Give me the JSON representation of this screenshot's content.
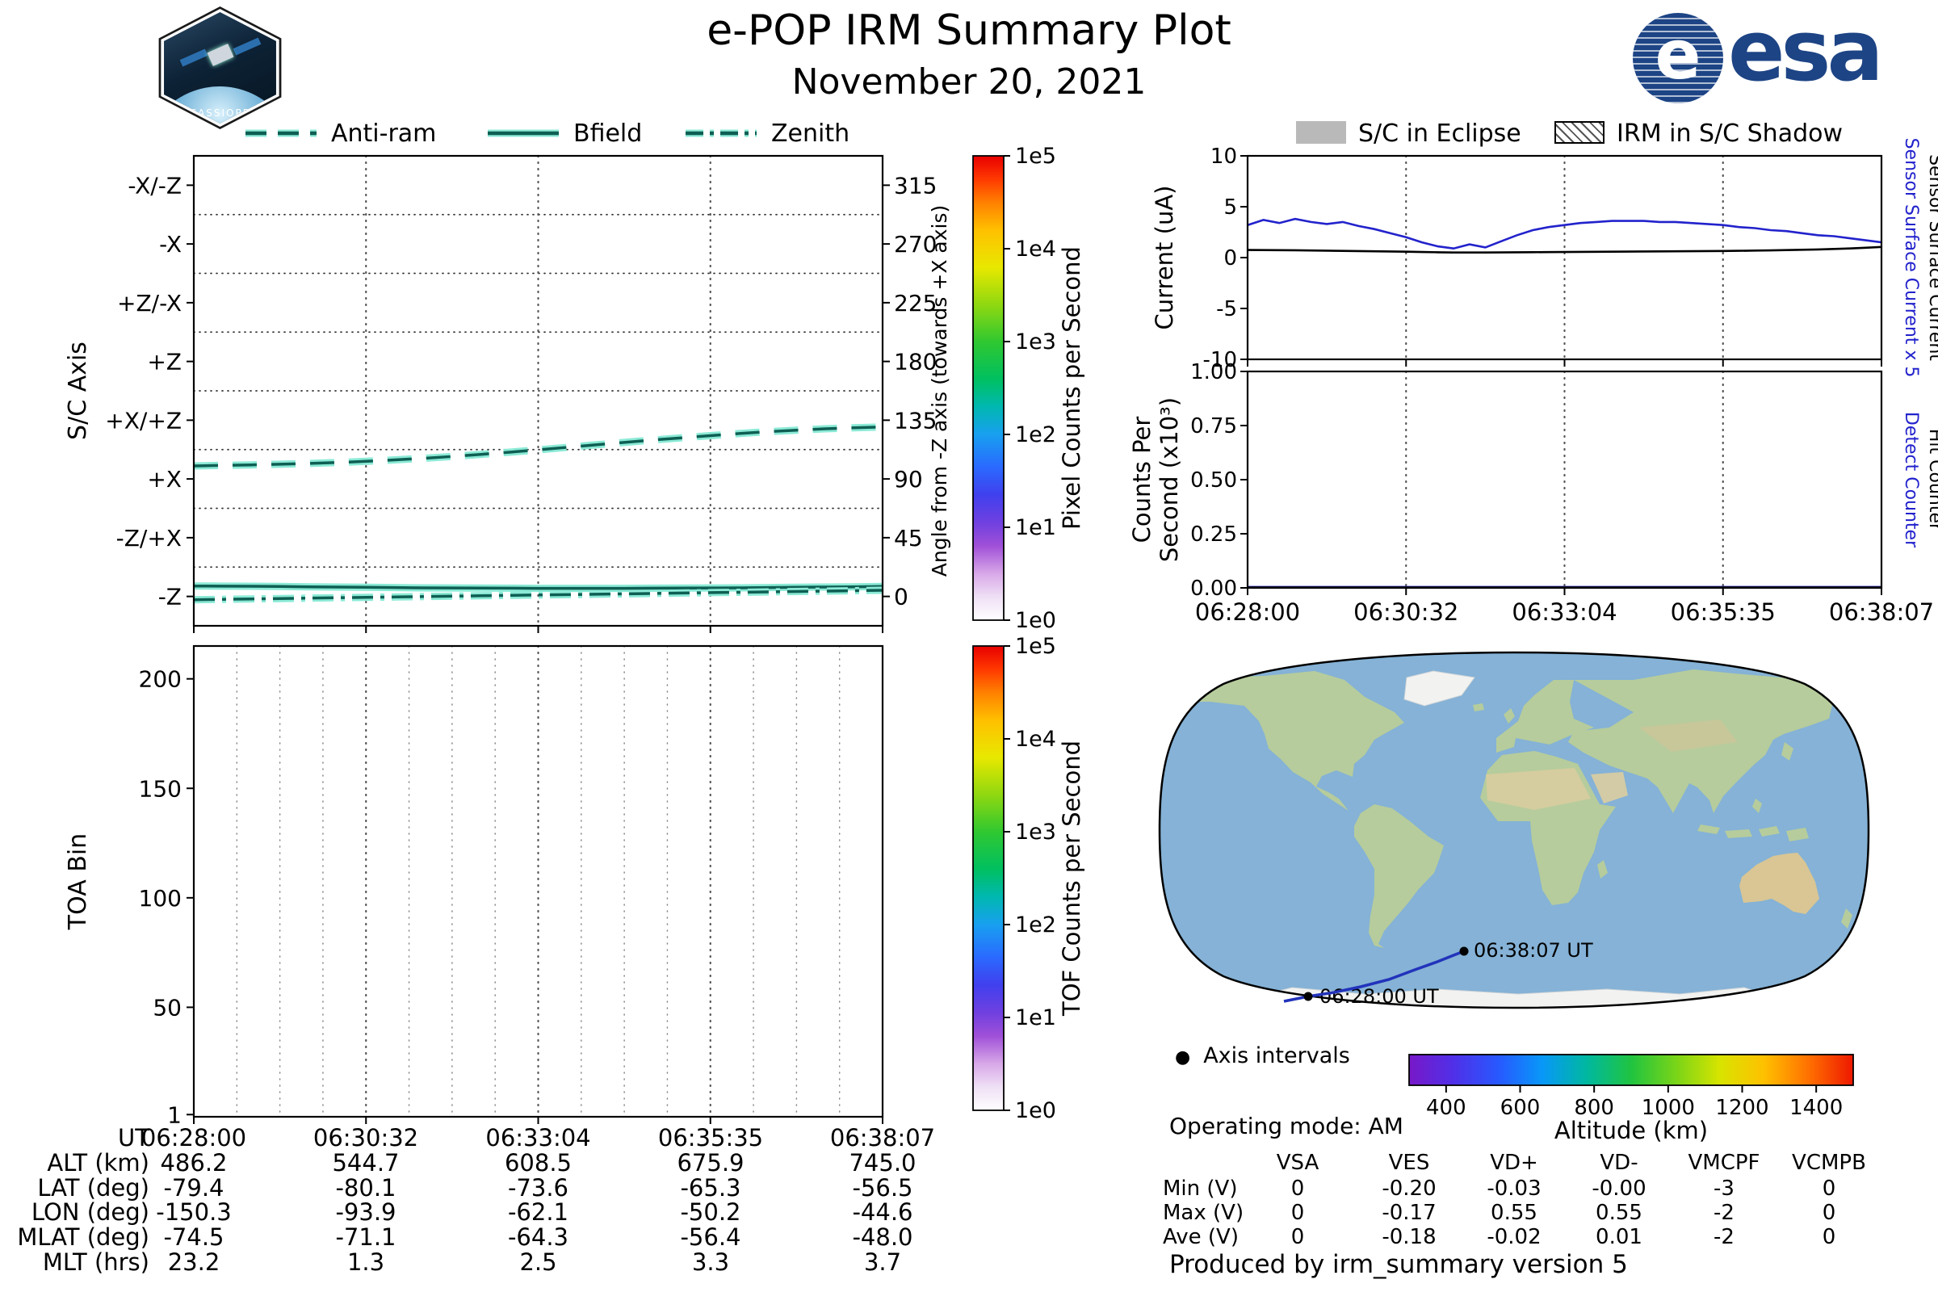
{
  "header": {
    "title": "e-POP IRM Summary Plot",
    "date": "November 20, 2021",
    "cassiope_label": "CASSIOPE",
    "esa_label": "esa"
  },
  "legend_sc_axis": {
    "items": [
      {
        "label": "Anti-ram",
        "style": "dashed"
      },
      {
        "label": "Bfield",
        "style": "solid"
      },
      {
        "label": "Zenith",
        "style": "dashdot"
      }
    ]
  },
  "legend_eclipse": {
    "items": [
      {
        "label": "S/C in Eclipse",
        "swatch": "gray"
      },
      {
        "label": "IRM in S/C Shadow",
        "swatch": "hatched"
      }
    ]
  },
  "chart_data": [
    {
      "id": "sc_axis",
      "type": "line",
      "y_left_label": "S/C Axis",
      "y_right_label": "Angle from -Z axis (towards +X axis)",
      "categories": [
        {
          "label": "-Z",
          "angle": 0
        },
        {
          "label": "-Z/+X",
          "angle": 45
        },
        {
          "label": "+X",
          "angle": 90
        },
        {
          "label": "+X/+Z",
          "angle": 135
        },
        {
          "label": "+Z",
          "angle": 180
        },
        {
          "label": "+Z/-X",
          "angle": 225
        },
        {
          "label": "-X",
          "angle": 270
        },
        {
          "label": "-X/-Z",
          "angle": 315
        }
      ],
      "right_ticks": [
        0,
        45,
        90,
        135,
        180,
        225,
        270,
        315
      ],
      "ylim": [
        -22.5,
        337.5
      ],
      "x_ticks": [
        "06:28:00",
        "06:30:32",
        "06:33:04",
        "06:35:35",
        "06:38:07"
      ],
      "series": [
        {
          "name": "Anti-ram",
          "style": "dashed",
          "values": [
            100,
            100.4,
            100.8,
            101.3,
            101.9,
            102.6,
            103.5,
            104.6,
            105.8,
            107.2,
            108.8,
            110.5,
            112.3,
            114.2,
            116.1,
            118,
            119.8,
            121.5,
            123.2,
            124.8,
            126.2,
            127.4,
            128.4,
            129.2,
            129.8
          ]
        },
        {
          "name": "Bfield",
          "style": "solid",
          "values": [
            8,
            7.9,
            7.8,
            7.6,
            7.4,
            7.2,
            7,
            6.8,
            6.6,
            6.5,
            6.4,
            6.3,
            6.2,
            6.2,
            6.2,
            6.2,
            6.3,
            6.4,
            6.5,
            6.6,
            6.8,
            7,
            7.2,
            7.4,
            7.6
          ]
        },
        {
          "name": "Zenith",
          "style": "dashdot",
          "values": [
            -2.5,
            -2.2,
            -1.9,
            -1.6,
            -1.3,
            -1,
            -0.7,
            -0.4,
            -0.1,
            0.2,
            0.5,
            0.8,
            1.1,
            1.4,
            1.7,
            2,
            2.3,
            2.6,
            2.9,
            3.2,
            3.5,
            3.8,
            4.1,
            4.4,
            4.7
          ]
        }
      ]
    },
    {
      "id": "current",
      "type": "line",
      "ylabel": "Current (uA)",
      "ylim": [
        -10,
        10
      ],
      "yticks": [
        -10,
        -5,
        0,
        5,
        10
      ],
      "right_labels": [
        {
          "text": "Sensor Surface Current x 5",
          "color": "#2222cc"
        },
        {
          "text": "Sensor Surface Current",
          "color": "#000000"
        }
      ],
      "series": [
        {
          "name": "Sensor Surface Current x 5",
          "color": "#2222cc",
          "values": [
            3.2,
            3.7,
            3.4,
            3.8,
            3.5,
            3.3,
            3.5,
            3.1,
            2.8,
            2.4,
            2.0,
            1.5,
            1.1,
            0.9,
            1.3,
            1.0,
            1.6,
            2.2,
            2.7,
            3.0,
            3.2,
            3.4,
            3.5,
            3.6,
            3.6,
            3.6,
            3.5,
            3.5,
            3.4,
            3.3,
            3.2,
            3.0,
            2.9,
            2.7,
            2.6,
            2.4,
            2.2,
            2.1,
            1.9,
            1.7,
            1.5
          ]
        },
        {
          "name": "Sensor Surface Current",
          "color": "#000000",
          "values": [
            0.75,
            0.74,
            0.73,
            0.72,
            0.7,
            0.68,
            0.66,
            0.64,
            0.62,
            0.6,
            0.58,
            0.55,
            0.52,
            0.5,
            0.5,
            0.5,
            0.51,
            0.52,
            0.53,
            0.54,
            0.55,
            0.56,
            0.57,
            0.58,
            0.59,
            0.6,
            0.61,
            0.62,
            0.63,
            0.64,
            0.65,
            0.67,
            0.69,
            0.71,
            0.74,
            0.77,
            0.8,
            0.85,
            0.9,
            0.97,
            1.05
          ]
        }
      ]
    },
    {
      "id": "counts",
      "type": "line",
      "ylabel_line1": "Counts Per",
      "ylabel_line2": "Second (x10³)",
      "ylim": [
        0,
        1
      ],
      "yticks": [
        "0.00",
        "0.25",
        "0.50",
        "0.75",
        "1.00"
      ],
      "x_ticks": [
        "06:28:00",
        "06:30:32",
        "06:33:04",
        "06:35:35",
        "06:38:07"
      ],
      "right_labels": [
        {
          "text": "Detect Counter",
          "color": "#2222cc"
        },
        {
          "text": "Hit Counter",
          "color": "#000000"
        }
      ],
      "series": [
        {
          "name": "Detect Counter",
          "color": "#2222cc",
          "values": [
            0.004,
            0.004,
            0.004,
            0.004,
            0.004,
            0.004,
            0.004,
            0.004,
            0.004,
            0.004,
            0.004
          ]
        },
        {
          "name": "Hit Counter",
          "color": "#000000",
          "values": [
            0.002,
            0.002,
            0.002,
            0.002,
            0.002,
            0.002,
            0.002,
            0.002,
            0.002,
            0.002,
            0.002
          ]
        }
      ]
    },
    {
      "id": "toa",
      "type": "heatmap",
      "ylabel": "TOA Bin",
      "ylim": [
        0,
        215
      ],
      "yticks": [
        1,
        50,
        100,
        150,
        200
      ],
      "x_ticks": [
        "06:28:00",
        "06:30:32",
        "06:33:04",
        "06:35:35",
        "06:38:07"
      ],
      "series": []
    }
  ],
  "colorbars": [
    {
      "id": "pixel",
      "label": "Pixel Counts per Second",
      "ticks": [
        "1e0",
        "1e1",
        "1e2",
        "1e3",
        "1e4",
        "1e5"
      ]
    },
    {
      "id": "tof",
      "label": "TOF Counts per Second",
      "ticks": [
        "1e0",
        "1e1",
        "1e2",
        "1e3",
        "1e4",
        "1e5"
      ]
    }
  ],
  "ephemeris_table": {
    "rows": [
      {
        "label": "UT",
        "values": [
          "06:28:00",
          "06:30:32",
          "06:33:04",
          "06:35:35",
          "06:38:07"
        ]
      },
      {
        "label": "ALT (km)",
        "values": [
          "486.2",
          "544.7",
          "608.5",
          "675.9",
          "745.0"
        ]
      },
      {
        "label": "LAT (deg)",
        "values": [
          "-79.4",
          "-80.1",
          "-73.6",
          "-65.3",
          "-56.5"
        ]
      },
      {
        "label": "LON (deg)",
        "values": [
          "-150.3",
          "-93.9",
          "-62.1",
          "-50.2",
          "-44.6"
        ]
      },
      {
        "label": "MLAT (deg)",
        "values": [
          "-74.5",
          "-71.1",
          "-64.3",
          "-56.4",
          "-48.0"
        ]
      },
      {
        "label": "MLT (hrs)",
        "values": [
          "23.2",
          "1.3",
          "2.5",
          "3.3",
          "3.7"
        ]
      }
    ]
  },
  "map": {
    "start_label": "06:28:00 UT",
    "end_label": "06:38:07 UT",
    "axis_intervals_label": "Axis intervals",
    "operating_mode_label": "Operating mode: AM",
    "altitude_colorbar": {
      "label": "Altitude (km)",
      "ticks": [
        400,
        600,
        800,
        1000,
        1200,
        1400
      ],
      "range": [
        300,
        1500
      ]
    },
    "trajectory": {
      "points": [
        [
          160,
          451
        ],
        [
          190,
          445
        ],
        [
          222,
          440
        ],
        [
          255,
          433
        ],
        [
          290,
          424
        ],
        [
          322,
          412
        ],
        [
          350,
          402
        ],
        [
          370,
          394
        ],
        [
          383,
          389
        ]
      ],
      "start_point": [
        190,
        445
      ],
      "end_point": [
        383,
        389
      ]
    }
  },
  "voltage_table": {
    "columns": [
      "VSA",
      "VES",
      "VD+",
      "VD-",
      "VMCPF",
      "VCMPB"
    ],
    "rows": [
      {
        "label": "Min (V)",
        "values": [
          "0",
          "-0.20",
          "-0.03",
          "-0.00",
          "-3",
          "0"
        ]
      },
      {
        "label": "Max (V)",
        "values": [
          "0",
          "-0.17",
          "0.55",
          "0.55",
          "-2",
          "0"
        ]
      },
      {
        "label": "Ave (V)",
        "values": [
          "0",
          "-0.18",
          "-0.02",
          "0.01",
          "-2",
          "0"
        ]
      }
    ]
  },
  "footer": "Produced by irm_summary version 5"
}
